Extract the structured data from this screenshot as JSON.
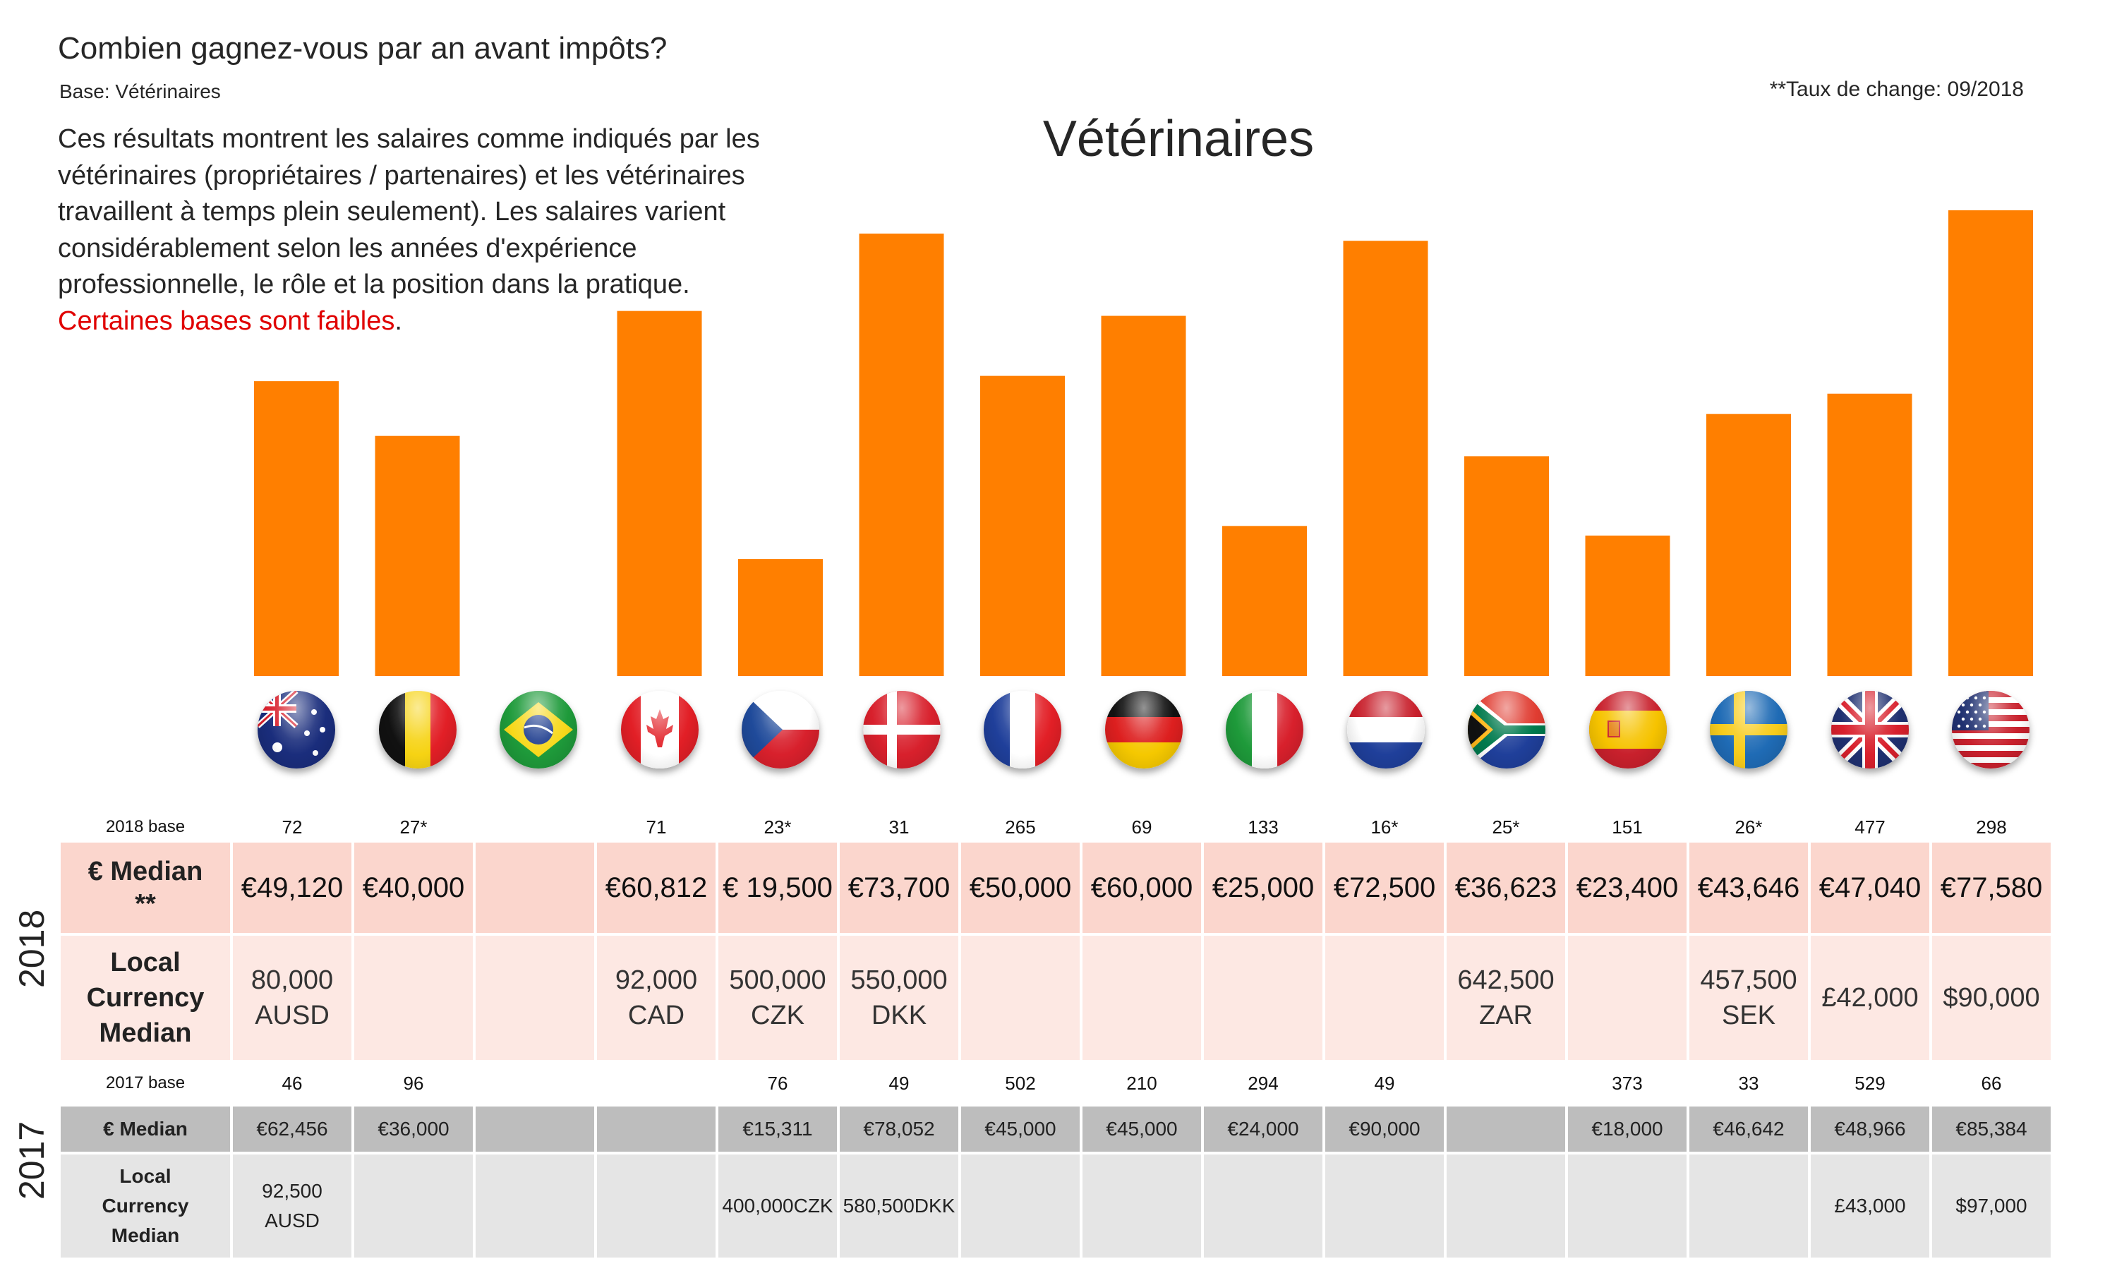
{
  "header": {
    "question": "Combien gagnez-vous par an avant impôts?",
    "base": "Base: Vétérinaires",
    "exchange_note": "**Taux de change: 09/2018",
    "intro": "Ces résultats montrent les salaires comme indiqués par les vétérinaires (propriétaires / partenaires) et les vétérinaires travaillent à temps plein seulement). Les salaires varient considérablement selon les années d'expérience professionnelle, le rôle et la position dans la pratique.",
    "warning": "Certaines bases sont faibles",
    "warning_tail": "."
  },
  "chart_data": {
    "type": "bar",
    "title": "Vétérinaires",
    "categories": [
      "Australia",
      "Belgium",
      "Brazil",
      "Canada",
      "Czech Republic",
      "Denmark",
      "France",
      "Germany",
      "Italy",
      "Netherlands",
      "South Africa",
      "Spain",
      "Sweden",
      "United Kingdom",
      "United States"
    ],
    "values": [
      49120,
      40000,
      null,
      60812,
      19500,
      73700,
      50000,
      60000,
      25000,
      72500,
      36623,
      23400,
      43646,
      47040,
      77580
    ],
    "bar_color": "#ff7f00",
    "ylim": [
      0,
      77580
    ]
  },
  "flags": [
    "australia-flag-icon",
    "belgium-flag-icon",
    "brazil-flag-icon",
    "canada-flag-icon",
    "czech-flag-icon",
    "denmark-flag-icon",
    "france-flag-icon",
    "germany-flag-icon",
    "italy-flag-icon",
    "netherlands-flag-icon",
    "south-africa-flag-icon",
    "spain-flag-icon",
    "sweden-flag-icon",
    "uk-flag-icon",
    "usa-flag-icon"
  ],
  "table": {
    "year_2018": "2018",
    "year_2017": "2017",
    "labels": {
      "base_2018": "2018 base",
      "eur_2018": [
        "€ Median",
        "**"
      ],
      "local_2018": [
        "Local",
        "Currency",
        "Median"
      ],
      "base_2017": "2017 base",
      "eur_2017": "€ Median",
      "local_2017": [
        "Local",
        "Currency",
        "Median"
      ]
    },
    "base_2018": [
      "72",
      "27*",
      "",
      "71",
      "23*",
      "31",
      "265",
      "69",
      "133",
      "16*",
      "25*",
      "151",
      "26*",
      "477",
      "298"
    ],
    "eur_2018": [
      "€49,120",
      "€40,000",
      "",
      "€60,812",
      "€ 19,500",
      "€73,700",
      "€50,000",
      "€60,000",
      "€25,000",
      "€72,500",
      "€36,623",
      "€23,400",
      "€43,646",
      "€47,040",
      "€77,580"
    ],
    "local_2018": [
      [
        "80,000",
        "AUSD"
      ],
      [],
      [],
      [
        "92,000",
        "CAD"
      ],
      [
        "500,000",
        "CZK"
      ],
      [
        "550,000",
        "DKK"
      ],
      [],
      [],
      [],
      [],
      [
        "642,500",
        "ZAR"
      ],
      [],
      [
        "457,500",
        "SEK"
      ],
      [
        "£42,000"
      ],
      [
        "$90,000"
      ]
    ],
    "base_2017": [
      "46",
      "96",
      "",
      "",
      "76",
      "49",
      "502",
      "210",
      "294",
      "49",
      "",
      "373",
      "33",
      "529",
      "66"
    ],
    "eur_2017": [
      "€62,456",
      "€36,000",
      "",
      "",
      "€15,311",
      "€78,052",
      "€45,000",
      "€45,000",
      "€24,000",
      "€90,000",
      "",
      "€18,000",
      "€46,642",
      "€48,966",
      "€85,384"
    ],
    "local_2017": [
      [
        "92,500",
        "AUSD"
      ],
      [],
      [],
      [],
      [
        "400,000CZK"
      ],
      [
        "580,500DKK"
      ],
      [],
      [],
      [],
      [],
      [],
      [],
      [],
      [
        "£43,000"
      ],
      [
        "$97,000"
      ]
    ]
  }
}
